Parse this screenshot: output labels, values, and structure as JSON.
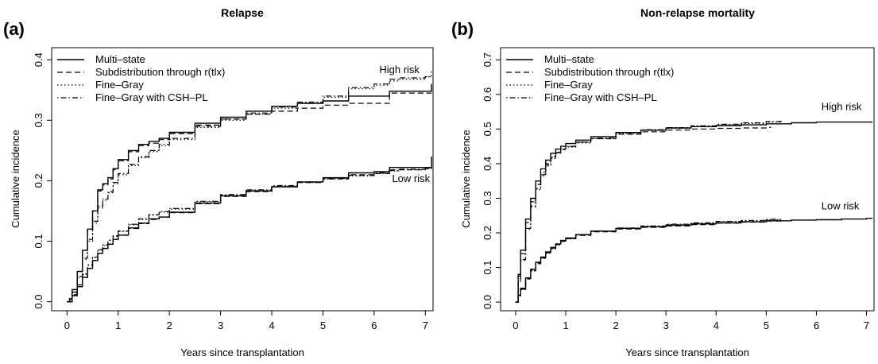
{
  "chart_data": [
    {
      "type": "line",
      "panel_label": "(a)",
      "title": "Relapse",
      "xlabel": "Years since transplantation",
      "ylabel": "Cumulative incidence",
      "xlim": [
        -0.3,
        7.15
      ],
      "ylim": [
        -0.015,
        0.42
      ],
      "xticks": [
        0,
        1,
        2,
        3,
        4,
        5,
        6,
        7
      ],
      "yticks": [
        0.0,
        0.1,
        0.2,
        0.3,
        0.4
      ],
      "legend": "top-left",
      "legend_entries": [
        {
          "name": "Multi–state",
          "style": "solid"
        },
        {
          "name": "Subdistribution through r(tlx)",
          "style": "dashed"
        },
        {
          "name": "Fine–Gray",
          "style": "dotted"
        },
        {
          "name": "Fine–Gray with CSH–PL",
          "style": "dotdash"
        }
      ],
      "annotations": [
        {
          "text": "High risk",
          "x": 6.1,
          "y": 0.378
        },
        {
          "text": "Low risk",
          "x": 6.35,
          "y": 0.198
        }
      ],
      "series": [
        {
          "group": "High risk",
          "style": "solid",
          "x": [
            0,
            0.05,
            0.1,
            0.2,
            0.3,
            0.4,
            0.5,
            0.6,
            0.7,
            0.8,
            0.9,
            1.0,
            1.2,
            1.4,
            1.6,
            1.8,
            2.0,
            2.5,
            3.0,
            3.5,
            4.0,
            4.5,
            5.0,
            5.5,
            6.0,
            6.3,
            6.5,
            7.0,
            7.12
          ],
          "y": [
            0,
            0.005,
            0.02,
            0.05,
            0.085,
            0.12,
            0.15,
            0.185,
            0.195,
            0.205,
            0.22,
            0.235,
            0.25,
            0.26,
            0.265,
            0.27,
            0.28,
            0.295,
            0.305,
            0.315,
            0.323,
            0.328,
            0.332,
            0.34,
            0.34,
            0.348,
            0.348,
            0.348,
            0.36
          ]
        },
        {
          "group": "High risk",
          "style": "dashed",
          "x": [
            0,
            0.05,
            0.1,
            0.2,
            0.3,
            0.4,
            0.5,
            0.6,
            0.7,
            0.8,
            0.9,
            1.0,
            1.2,
            1.4,
            1.6,
            1.8,
            2.0,
            2.5,
            3.0,
            3.5,
            4.0,
            4.5,
            5.0,
            5.5,
            6.0,
            6.3,
            6.5,
            7.0,
            7.12
          ],
          "y": [
            0,
            0.005,
            0.02,
            0.05,
            0.085,
            0.12,
            0.15,
            0.183,
            0.193,
            0.203,
            0.218,
            0.233,
            0.248,
            0.258,
            0.262,
            0.268,
            0.278,
            0.292,
            0.302,
            0.31,
            0.315,
            0.32,
            0.325,
            0.328,
            0.328,
            0.345,
            0.345,
            0.345,
            0.345
          ]
        },
        {
          "group": "High risk",
          "style": "dotted",
          "x": [
            0,
            0.05,
            0.1,
            0.2,
            0.3,
            0.4,
            0.5,
            0.6,
            0.7,
            0.8,
            0.9,
            1.0,
            1.2,
            1.4,
            1.6,
            1.8,
            2.0,
            2.5,
            3.0,
            3.5,
            4.0,
            4.5,
            5.0,
            5.5,
            6.0,
            6.3,
            6.5,
            7.0,
            7.12
          ],
          "y": [
            0,
            0.004,
            0.015,
            0.04,
            0.07,
            0.1,
            0.13,
            0.155,
            0.168,
            0.18,
            0.195,
            0.21,
            0.225,
            0.238,
            0.248,
            0.258,
            0.268,
            0.288,
            0.3,
            0.31,
            0.32,
            0.328,
            0.338,
            0.352,
            0.358,
            0.365,
            0.368,
            0.372,
            0.382
          ]
        },
        {
          "group": "High risk",
          "style": "dotdash",
          "x": [
            0,
            0.05,
            0.1,
            0.2,
            0.3,
            0.4,
            0.5,
            0.6,
            0.7,
            0.8,
            0.9,
            1.0,
            1.2,
            1.4,
            1.6,
            1.8,
            2.0,
            2.5,
            3.0,
            3.5,
            4.0,
            4.5,
            5.0,
            5.5,
            6.0,
            6.3,
            6.5,
            7.0,
            7.12
          ],
          "y": [
            0,
            0.004,
            0.016,
            0.042,
            0.072,
            0.103,
            0.133,
            0.158,
            0.17,
            0.182,
            0.197,
            0.212,
            0.227,
            0.24,
            0.25,
            0.26,
            0.27,
            0.29,
            0.302,
            0.312,
            0.322,
            0.33,
            0.34,
            0.354,
            0.36,
            0.368,
            0.37,
            0.372,
            0.372
          ]
        },
        {
          "group": "Low risk",
          "style": "solid",
          "x": [
            0,
            0.1,
            0.2,
            0.3,
            0.4,
            0.5,
            0.6,
            0.7,
            0.8,
            0.9,
            1.0,
            1.2,
            1.4,
            1.6,
            1.8,
            2.0,
            2.5,
            3.0,
            3.5,
            4.0,
            4.5,
            5.0,
            5.5,
            6.0,
            6.3,
            6.5,
            7.0,
            7.12
          ],
          "y": [
            0,
            0.01,
            0.025,
            0.04,
            0.055,
            0.068,
            0.08,
            0.088,
            0.095,
            0.103,
            0.11,
            0.122,
            0.13,
            0.137,
            0.14,
            0.148,
            0.163,
            0.175,
            0.183,
            0.19,
            0.198,
            0.205,
            0.213,
            0.215,
            0.222,
            0.222,
            0.222,
            0.24
          ]
        },
        {
          "group": "Low risk",
          "style": "dashed",
          "x": [
            0,
            0.1,
            0.2,
            0.3,
            0.4,
            0.5,
            0.6,
            0.7,
            0.8,
            0.9,
            1.0,
            1.2,
            1.4,
            1.6,
            1.8,
            2.0,
            2.5,
            3.0,
            3.5,
            4.0,
            4.5,
            5.0,
            5.5,
            6.0,
            6.3,
            6.5,
            7.0,
            7.12
          ],
          "y": [
            0,
            0.01,
            0.025,
            0.04,
            0.055,
            0.068,
            0.08,
            0.088,
            0.095,
            0.103,
            0.11,
            0.121,
            0.129,
            0.136,
            0.14,
            0.147,
            0.162,
            0.174,
            0.182,
            0.19,
            0.197,
            0.203,
            0.21,
            0.212,
            0.218,
            0.218,
            0.22,
            0.222
          ]
        },
        {
          "group": "Low risk",
          "style": "dotted",
          "x": [
            0,
            0.1,
            0.2,
            0.3,
            0.4,
            0.5,
            0.6,
            0.7,
            0.8,
            0.9,
            1.0,
            1.2,
            1.4,
            1.6,
            1.8,
            2.0,
            2.5,
            3.0,
            3.5,
            4.0,
            4.5,
            5.0,
            5.5,
            6.0,
            6.3,
            6.5,
            7.0,
            7.12
          ],
          "y": [
            0,
            0.012,
            0.028,
            0.045,
            0.06,
            0.073,
            0.085,
            0.093,
            0.101,
            0.108,
            0.116,
            0.127,
            0.136,
            0.143,
            0.148,
            0.153,
            0.165,
            0.176,
            0.184,
            0.191,
            0.197,
            0.203,
            0.208,
            0.212,
            0.216,
            0.218,
            0.22,
            0.222
          ]
        },
        {
          "group": "Low risk",
          "style": "dotdash",
          "x": [
            0,
            0.1,
            0.2,
            0.3,
            0.4,
            0.5,
            0.6,
            0.7,
            0.8,
            0.9,
            1.0,
            1.2,
            1.4,
            1.6,
            1.8,
            2.0,
            2.5,
            3.0,
            3.5,
            4.0,
            4.5,
            5.0,
            5.5,
            6.0,
            6.3,
            6.5,
            7.0,
            7.12
          ],
          "y": [
            0,
            0.012,
            0.028,
            0.046,
            0.061,
            0.074,
            0.086,
            0.094,
            0.102,
            0.109,
            0.117,
            0.128,
            0.137,
            0.144,
            0.149,
            0.154,
            0.166,
            0.177,
            0.185,
            0.192,
            0.198,
            0.204,
            0.209,
            0.213,
            0.217,
            0.219,
            0.221,
            0.223
          ]
        }
      ]
    },
    {
      "type": "line",
      "panel_label": "(b)",
      "title": "Non-relapse mortality",
      "xlabel": "Years since transplantation",
      "ylabel": "Cumulative incidence",
      "xlim": [
        -0.3,
        7.15
      ],
      "ylim": [
        -0.025,
        0.735
      ],
      "xticks": [
        0,
        1,
        2,
        3,
        4,
        5,
        6,
        7
      ],
      "yticks": [
        0.0,
        0.1,
        0.2,
        0.3,
        0.4,
        0.5,
        0.6,
        0.7
      ],
      "legend": "top-left",
      "legend_entries": [
        {
          "name": "Multi–state",
          "style": "solid"
        },
        {
          "name": "Subdistribution through r(tlx)",
          "style": "dashed"
        },
        {
          "name": "Fine–Gray",
          "style": "dotted"
        },
        {
          "name": "Fine–Gray with CSH–PL",
          "style": "dotdash"
        }
      ],
      "annotations": [
        {
          "text": "High risk",
          "x": 6.1,
          "y": 0.555
        },
        {
          "text": "Low risk",
          "x": 6.1,
          "y": 0.268
        }
      ],
      "series": [
        {
          "group": "High risk",
          "style": "solid",
          "x": [
            0,
            0.05,
            0.1,
            0.2,
            0.3,
            0.4,
            0.5,
            0.6,
            0.7,
            0.8,
            0.9,
            1.0,
            1.2,
            1.5,
            2.0,
            2.5,
            3.0,
            3.5,
            4.0,
            4.5,
            5.0,
            5.5,
            6.0,
            6.5,
            7.0,
            7.12
          ],
          "y": [
            0,
            0.08,
            0.15,
            0.24,
            0.3,
            0.35,
            0.385,
            0.41,
            0.43,
            0.442,
            0.45,
            0.458,
            0.468,
            0.478,
            0.49,
            0.497,
            0.503,
            0.507,
            0.51,
            0.512,
            0.515,
            0.518,
            0.52,
            0.52,
            0.52,
            0.52
          ]
        },
        {
          "group": "High risk",
          "style": "dashed",
          "x": [
            0,
            0.05,
            0.1,
            0.2,
            0.3,
            0.4,
            0.5,
            0.6,
            0.7,
            0.8,
            0.9,
            1.0,
            1.2,
            1.5,
            2.0,
            2.5,
            3.0,
            3.5,
            4.0,
            4.5,
            5.0,
            5.1
          ],
          "y": [
            0,
            0.075,
            0.14,
            0.23,
            0.29,
            0.34,
            0.375,
            0.4,
            0.42,
            0.433,
            0.442,
            0.45,
            0.462,
            0.472,
            0.485,
            0.492,
            0.497,
            0.5,
            0.502,
            0.503,
            0.505,
            0.505
          ]
        },
        {
          "group": "High risk",
          "style": "dotted",
          "x": [
            0,
            0.05,
            0.1,
            0.2,
            0.3,
            0.4,
            0.5,
            0.6,
            0.7,
            0.8,
            0.9,
            1.0,
            1.2,
            1.5,
            2.0,
            2.5,
            3.0,
            3.5,
            4.0,
            4.5,
            5.0,
            5.3
          ],
          "y": [
            0,
            0.06,
            0.12,
            0.21,
            0.275,
            0.325,
            0.365,
            0.393,
            0.415,
            0.43,
            0.44,
            0.448,
            0.46,
            0.472,
            0.487,
            0.496,
            0.502,
            0.507,
            0.512,
            0.516,
            0.52,
            0.522
          ]
        },
        {
          "group": "High risk",
          "style": "dotdash",
          "x": [
            0,
            0.05,
            0.1,
            0.2,
            0.3,
            0.4,
            0.5,
            0.6,
            0.7,
            0.8,
            0.9,
            1.0,
            1.2,
            1.5,
            2.0,
            2.5,
            3.0,
            3.5,
            4.0,
            4.5,
            5.0,
            5.3
          ],
          "y": [
            0,
            0.062,
            0.123,
            0.213,
            0.278,
            0.328,
            0.368,
            0.396,
            0.418,
            0.432,
            0.442,
            0.45,
            0.462,
            0.474,
            0.489,
            0.498,
            0.504,
            0.509,
            0.514,
            0.518,
            0.522,
            0.524
          ]
        },
        {
          "group": "Low risk",
          "style": "solid",
          "x": [
            0,
            0.05,
            0.1,
            0.2,
            0.3,
            0.4,
            0.5,
            0.6,
            0.7,
            0.8,
            0.9,
            1.0,
            1.2,
            1.5,
            2.0,
            2.5,
            3.0,
            3.5,
            4.0,
            4.5,
            5.0,
            5.5,
            6.0,
            6.5,
            7.0,
            7.12
          ],
          "y": [
            0,
            0.02,
            0.04,
            0.07,
            0.095,
            0.115,
            0.13,
            0.145,
            0.158,
            0.168,
            0.178,
            0.185,
            0.195,
            0.205,
            0.213,
            0.218,
            0.222,
            0.226,
            0.229,
            0.232,
            0.235,
            0.237,
            0.238,
            0.24,
            0.242,
            0.242
          ]
        },
        {
          "group": "Low risk",
          "style": "dashed",
          "x": [
            0,
            0.05,
            0.1,
            0.2,
            0.3,
            0.4,
            0.5,
            0.6,
            0.7,
            0.8,
            0.9,
            1.0,
            1.2,
            1.5,
            2.0,
            2.5,
            3.0,
            3.5,
            4.0,
            4.5,
            5.0,
            5.3
          ],
          "y": [
            0,
            0.019,
            0.038,
            0.068,
            0.093,
            0.113,
            0.128,
            0.143,
            0.156,
            0.166,
            0.176,
            0.183,
            0.193,
            0.203,
            0.211,
            0.216,
            0.22,
            0.224,
            0.228,
            0.231,
            0.234,
            0.235
          ]
        },
        {
          "group": "Low risk",
          "style": "dotted",
          "x": [
            0,
            0.05,
            0.1,
            0.2,
            0.3,
            0.4,
            0.5,
            0.6,
            0.7,
            0.8,
            0.9,
            1.0,
            1.2,
            1.5,
            2.0,
            2.5,
            3.0,
            3.5,
            4.0,
            4.5,
            5.0,
            5.3
          ],
          "y": [
            0,
            0.018,
            0.036,
            0.066,
            0.09,
            0.11,
            0.126,
            0.141,
            0.154,
            0.165,
            0.175,
            0.183,
            0.194,
            0.204,
            0.213,
            0.219,
            0.224,
            0.228,
            0.232,
            0.235,
            0.238,
            0.239
          ]
        },
        {
          "group": "Low risk",
          "style": "dotdash",
          "x": [
            0,
            0.05,
            0.1,
            0.2,
            0.3,
            0.4,
            0.5,
            0.6,
            0.7,
            0.8,
            0.9,
            1.0,
            1.2,
            1.5,
            2.0,
            2.5,
            3.0,
            3.5,
            4.0,
            4.5,
            5.0,
            5.3
          ],
          "y": [
            0,
            0.018,
            0.037,
            0.067,
            0.091,
            0.111,
            0.127,
            0.142,
            0.155,
            0.166,
            0.176,
            0.184,
            0.195,
            0.205,
            0.214,
            0.22,
            0.225,
            0.229,
            0.233,
            0.236,
            0.239,
            0.24
          ]
        }
      ]
    }
  ]
}
